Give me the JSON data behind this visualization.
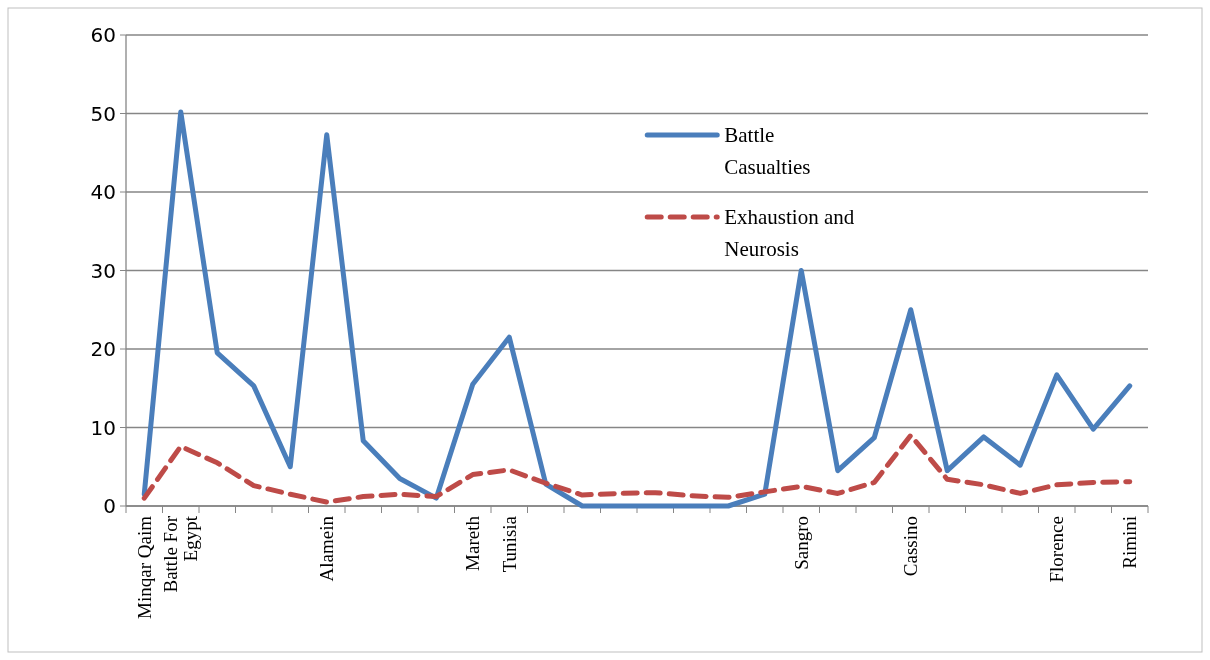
{
  "chart_data": {
    "type": "line",
    "categories": [
      "Minqar Qaim",
      "Battle For Egypt",
      null,
      null,
      null,
      "Alamein",
      null,
      null,
      null,
      "Mareth",
      "Tunisia",
      null,
      null,
      null,
      null,
      null,
      null,
      null,
      "Sangro",
      null,
      null,
      "Cassino",
      null,
      null,
      null,
      "Florence",
      null,
      "Rimini"
    ],
    "series": [
      {
        "name": "Battle Casualties",
        "color": "#4a7ebb",
        "line_style": "solid",
        "values": [
          1.5,
          50.2,
          19.5,
          15.3,
          5,
          47.3,
          8.3,
          3.5,
          1,
          15.5,
          21.5,
          2.8,
          0,
          0,
          0,
          0,
          0,
          1.5,
          30,
          4.5,
          8.7,
          25,
          4.5,
          8.8,
          5.2,
          16.7,
          9.8,
          15.3
        ]
      },
      {
        "name": "Exhaustion and Neurosis",
        "color": "#be4b48",
        "line_style": "dashed",
        "values": [
          1,
          7.6,
          5.5,
          2.6,
          1.5,
          0.5,
          1.2,
          1.5,
          1.2,
          4,
          4.6,
          2.9,
          1.4,
          1.6,
          1.7,
          1.3,
          1.1,
          1.8,
          2.5,
          1.6,
          3,
          9,
          3.4,
          2.7,
          1.6,
          2.7,
          3,
          3.1
        ]
      }
    ],
    "ylim": [
      0,
      60
    ],
    "yticks": [
      0,
      10,
      20,
      30,
      40,
      50,
      60
    ],
    "grid": "y",
    "legend": "top right",
    "marker": "none"
  }
}
